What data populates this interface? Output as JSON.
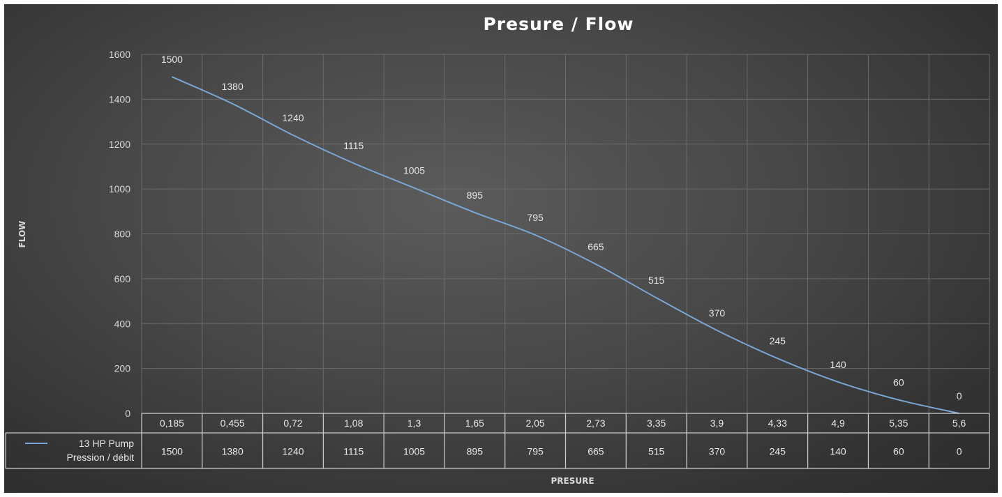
{
  "chart_data": {
    "type": "line",
    "title": "Presure / Flow",
    "xlabel": "PRESURE",
    "ylabel": "FLOW",
    "ylim": [
      0,
      1600
    ],
    "yticks": [
      "0",
      "200",
      "400",
      "600",
      "800",
      "1000",
      "1200",
      "1400",
      "1600"
    ],
    "categories": [
      "0,185",
      "0,455",
      "0,72",
      "1,08",
      "1,3",
      "1,65",
      "2,05",
      "2,73",
      "3,35",
      "3,9",
      "4,33",
      "4,9",
      "5,35",
      "5,6"
    ],
    "series": [
      {
        "name_line1": "13 HP Pump",
        "name_line2": "Pression / débit",
        "values": [
          1500,
          1380,
          1240,
          1115,
          1005,
          895,
          795,
          665,
          515,
          370,
          245,
          140,
          60,
          0
        ],
        "color": "#7aa6d4"
      }
    ],
    "grid": true,
    "data_labels": true,
    "data_table": true
  }
}
